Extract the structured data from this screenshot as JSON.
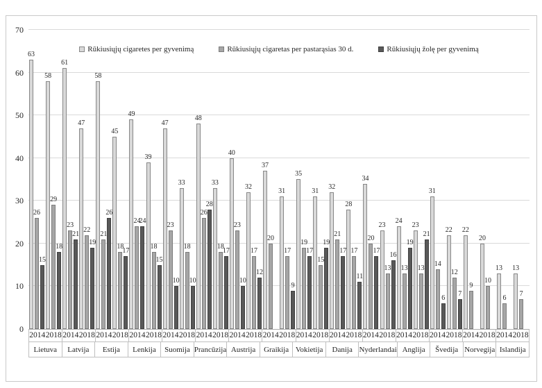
{
  "chart_data": {
    "type": "bar",
    "title": "",
    "xlabel": "",
    "ylabel": "",
    "ylim": [
      0,
      70
    ],
    "y_ticks": [
      0,
      10,
      20,
      30,
      40,
      50,
      60,
      70
    ],
    "grid": "horizontal",
    "legend_position": "top-inside",
    "background": "#ffffff",
    "frame_border_color": "#c9c9c9",
    "gridline_color": "#d9d9d9",
    "series_meta": [
      {
        "name": "Rūkiusiųjų cigaretes per gyvenimą",
        "fill": "#d9d9d9",
        "border": "#878787"
      },
      {
        "name": "Rūkiusiųjų cigaretas per pastarąsias 30 d.",
        "fill": "#a6a6a6",
        "border": "#7c7c7c"
      },
      {
        "name": "Rūkiusiųjų žolę per gyvenimą",
        "fill": "#595959",
        "border": "#404040"
      }
    ],
    "years": [
      "2014",
      "2018"
    ],
    "groups": [
      {
        "country": "Lietuva",
        "values": {
          "2014": [
            63,
            26,
            15
          ],
          "2018": [
            58,
            29,
            18
          ]
        }
      },
      {
        "country": "Latvija",
        "values": {
          "2014": [
            61,
            23,
            21
          ],
          "2018": [
            47,
            22,
            19
          ]
        }
      },
      {
        "country": "Estija",
        "values": {
          "2014": [
            58,
            21,
            26
          ],
          "2018": [
            45,
            18,
            17
          ]
        }
      },
      {
        "country": "Lenkija",
        "values": {
          "2014": [
            49,
            24,
            24
          ],
          "2018": [
            39,
            18,
            15
          ]
        }
      },
      {
        "country": "Suomija",
        "values": {
          "2014": [
            47,
            23,
            10
          ],
          "2018": [
            33,
            18,
            10
          ]
        }
      },
      {
        "country": "Prancūzija",
        "values": {
          "2014": [
            48,
            26,
            28
          ],
          "2018": [
            33,
            18,
            17
          ]
        }
      },
      {
        "country": "Austrija",
        "values": {
          "2014": [
            40,
            23,
            10
          ],
          "2018": [
            32,
            17,
            12
          ]
        }
      },
      {
        "country": "Graikija",
        "values": {
          "2014": [
            37,
            20,
            null
          ],
          "2018": [
            31,
            17,
            9
          ]
        }
      },
      {
        "country": "Vokietija",
        "values": {
          "2014": [
            35,
            19,
            17
          ],
          "2018": [
            31,
            15,
            19
          ]
        }
      },
      {
        "country": "Danija",
        "values": {
          "2014": [
            32,
            21,
            17
          ],
          "2018": [
            28,
            17,
            11
          ]
        }
      },
      {
        "country": "Nyderlandai",
        "values": {
          "2014": [
            34,
            20,
            17
          ],
          "2018": [
            23,
            13,
            16
          ]
        }
      },
      {
        "country": "Anglija",
        "values": {
          "2014": [
            24,
            13,
            19
          ],
          "2018": [
            23,
            13,
            21
          ]
        }
      },
      {
        "country": "Švedija",
        "values": {
          "2014": [
            31,
            14,
            6
          ],
          "2018": [
            22,
            12,
            7
          ]
        }
      },
      {
        "country": "Norvegija",
        "values": {
          "2014": [
            22,
            9,
            null
          ],
          "2018": [
            20,
            10,
            null
          ]
        }
      },
      {
        "country": "Islandija",
        "values": {
          "2014": [
            13,
            6,
            null
          ],
          "2018": [
            13,
            7,
            null
          ]
        }
      }
    ]
  }
}
